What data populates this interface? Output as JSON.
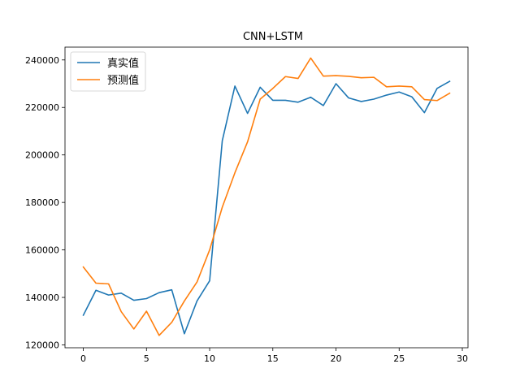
{
  "chart_data": {
    "type": "line",
    "title": "CNN+LSTM",
    "xlabel": "",
    "ylabel": "",
    "xlim": [
      -1.45,
      30.45
    ],
    "ylim": [
      118800,
      245400
    ],
    "xticks": [
      0,
      5,
      10,
      15,
      20,
      25,
      30
    ],
    "yticks": [
      120000,
      140000,
      160000,
      180000,
      200000,
      220000,
      240000
    ],
    "grid": false,
    "legend_position": "top-left",
    "x": [
      0,
      1,
      2,
      3,
      4,
      5,
      6,
      7,
      8,
      9,
      10,
      11,
      12,
      13,
      14,
      15,
      16,
      17,
      18,
      19,
      20,
      21,
      22,
      23,
      24,
      25,
      26,
      27,
      28,
      29
    ],
    "series": [
      {
        "name": "真实值",
        "color": "#1f77b4",
        "values": [
          132500,
          143000,
          141000,
          141800,
          138800,
          139500,
          142000,
          143200,
          124700,
          138500,
          147000,
          206000,
          229000,
          217500,
          228500,
          223000,
          223000,
          222200,
          224300,
          220800,
          230000,
          224000,
          222500,
          223500,
          225200,
          226500,
          224500,
          217800,
          228000,
          231000
        ]
      },
      {
        "name": "预测值",
        "color": "#ff7f0e",
        "values": [
          152800,
          146000,
          145700,
          134000,
          126700,
          134200,
          124000,
          129500,
          138500,
          146500,
          160000,
          178000,
          192500,
          205500,
          223500,
          228000,
          233000,
          232200,
          240800,
          233200,
          233400,
          233100,
          232500,
          232700,
          228700,
          229000,
          228700,
          223300,
          222900,
          226000
        ]
      }
    ]
  }
}
